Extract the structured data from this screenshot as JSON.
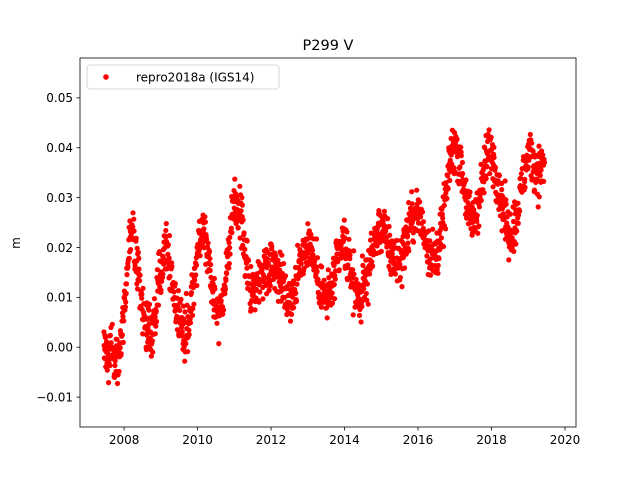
{
  "chart_data": {
    "type": "scatter",
    "title": "P299 V",
    "xlabel": "",
    "ylabel": "m",
    "xlim": [
      2006.8,
      2020.3
    ],
    "ylim": [
      -0.016,
      0.058
    ],
    "xticks": [
      2008,
      2010,
      2012,
      2014,
      2016,
      2018,
      2020
    ],
    "xtick_labels": [
      "2008",
      "2010",
      "2012",
      "2014",
      "2016",
      "2018",
      "2020"
    ],
    "yticks": [
      -0.01,
      0.0,
      0.01,
      0.02,
      0.03,
      0.04,
      0.05
    ],
    "ytick_labels": [
      "−0.01",
      "0.00",
      "0.01",
      "0.02",
      "0.03",
      "0.04",
      "0.05"
    ],
    "grid": false,
    "legend_position": "top-left",
    "series": [
      {
        "name": "repro2018a (IGS14)",
        "color": "#ff0000",
        "marker": "circle",
        "x": [
          2007.45,
          2007.55,
          2007.65,
          2007.75,
          2007.85,
          2007.95,
          2008.05,
          2008.15,
          2008.25,
          2008.35,
          2008.45,
          2008.55,
          2008.65,
          2008.75,
          2008.85,
          2008.95,
          2009.05,
          2009.15,
          2009.25,
          2009.35,
          2009.45,
          2009.55,
          2009.65,
          2009.75,
          2009.85,
          2009.95,
          2010.05,
          2010.15,
          2010.25,
          2010.35,
          2010.45,
          2010.55,
          2010.65,
          2010.75,
          2010.85,
          2010.95,
          2011.05,
          2011.15,
          2011.25,
          2011.35,
          2011.45,
          2011.55,
          2011.65,
          2011.75,
          2011.85,
          2011.95,
          2012.05,
          2012.15,
          2012.25,
          2012.35,
          2012.45,
          2012.55,
          2012.65,
          2012.75,
          2012.85,
          2012.95,
          2013.05,
          2013.15,
          2013.25,
          2013.35,
          2013.45,
          2013.55,
          2013.65,
          2013.75,
          2013.85,
          2013.95,
          2014.05,
          2014.15,
          2014.25,
          2014.35,
          2014.45,
          2014.55,
          2014.65,
          2014.75,
          2014.85,
          2014.95,
          2015.05,
          2015.15,
          2015.25,
          2015.35,
          2015.45,
          2015.55,
          2015.65,
          2015.75,
          2015.85,
          2015.95,
          2016.05,
          2016.15,
          2016.25,
          2016.35,
          2016.45,
          2016.55,
          2016.65,
          2016.75,
          2016.85,
          2016.95,
          2017.05,
          2017.15,
          2017.25,
          2017.35,
          2017.45,
          2017.55,
          2017.65,
          2017.75,
          2017.85,
          2017.95,
          2018.05,
          2018.15,
          2018.25,
          2018.35,
          2018.45,
          2018.55,
          2018.65,
          2018.75,
          2018.85,
          2018.95,
          2019.05,
          2019.15,
          2019.25,
          2019.35
        ],
        "y": [
          0.0,
          -0.002,
          0.001,
          -0.003,
          -0.001,
          0.003,
          0.012,
          0.021,
          0.023,
          0.016,
          0.01,
          0.006,
          0.004,
          0.003,
          0.006,
          0.013,
          0.019,
          0.022,
          0.016,
          0.011,
          0.007,
          0.005,
          0.003,
          0.005,
          0.01,
          0.016,
          0.021,
          0.024,
          0.021,
          0.015,
          0.01,
          0.007,
          0.008,
          0.013,
          0.02,
          0.026,
          0.028,
          0.028,
          0.022,
          0.015,
          0.012,
          0.012,
          0.013,
          0.015,
          0.016,
          0.017,
          0.018,
          0.016,
          0.014,
          0.012,
          0.01,
          0.01,
          0.012,
          0.015,
          0.018,
          0.02,
          0.021,
          0.018,
          0.015,
          0.012,
          0.01,
          0.01,
          0.012,
          0.015,
          0.018,
          0.021,
          0.019,
          0.016,
          0.013,
          0.01,
          0.01,
          0.013,
          0.016,
          0.019,
          0.022,
          0.024,
          0.024,
          0.021,
          0.019,
          0.018,
          0.017,
          0.018,
          0.021,
          0.024,
          0.026,
          0.027,
          0.026,
          0.023,
          0.021,
          0.019,
          0.018,
          0.02,
          0.024,
          0.029,
          0.036,
          0.04,
          0.04,
          0.037,
          0.033,
          0.028,
          0.025,
          0.026,
          0.029,
          0.033,
          0.037,
          0.04,
          0.038,
          0.034,
          0.03,
          0.027,
          0.023,
          0.023,
          0.025,
          0.029,
          0.033,
          0.037,
          0.039,
          0.037,
          0.035,
          0.036
        ]
      }
    ]
  }
}
